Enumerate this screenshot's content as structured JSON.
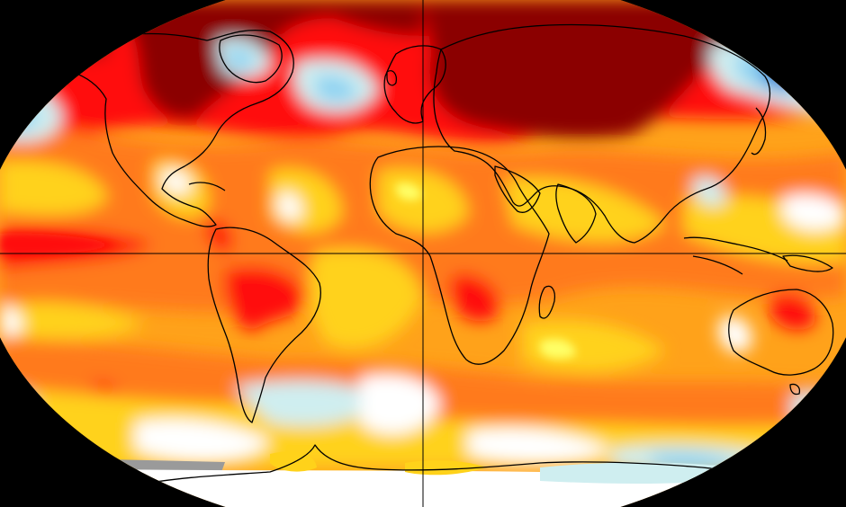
{
  "map": {
    "type": "temperature-anomaly",
    "projection": "robinson",
    "background_color": "#000000",
    "palette": {
      "extreme_warm": "#8b0000",
      "very_warm": "#ff0f0f",
      "warm": "#ff7a1a",
      "slightly_warm": "#ffa21a",
      "mild_warm": "#ffd21a",
      "light_warm": "#ffff66",
      "neutral": "#ffffff",
      "mild_cool": "#cfeef0",
      "cool": "#8fd3f2",
      "cold": "#2c7fd6",
      "very_cold": "#1e3fbf",
      "extreme_cold": "#8a2be2",
      "no_data": "#9a9a9a",
      "coastline": "#000000"
    },
    "graticule": {
      "show_equator": true,
      "show_prime_meridian": true
    }
  }
}
